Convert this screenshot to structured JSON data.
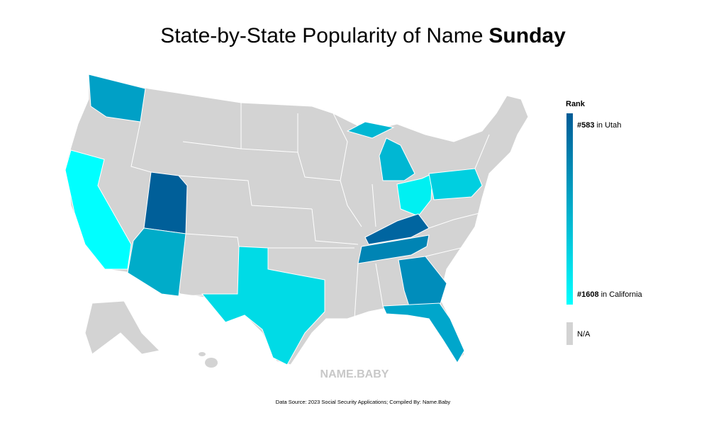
{
  "title": {
    "text": "State-by-State Popularity of Name",
    "name": "Sunday"
  },
  "legend": {
    "title": "Rank",
    "top": {
      "rank": "#583",
      "place": "in Utah"
    },
    "bottom": {
      "rank": "#1608",
      "place": "in California"
    },
    "na": "N/A"
  },
  "watermark": "NAME.BABY",
  "source": "Data Source: 2023 Social Security Applications; Compiled By: Name.Baby"
}
